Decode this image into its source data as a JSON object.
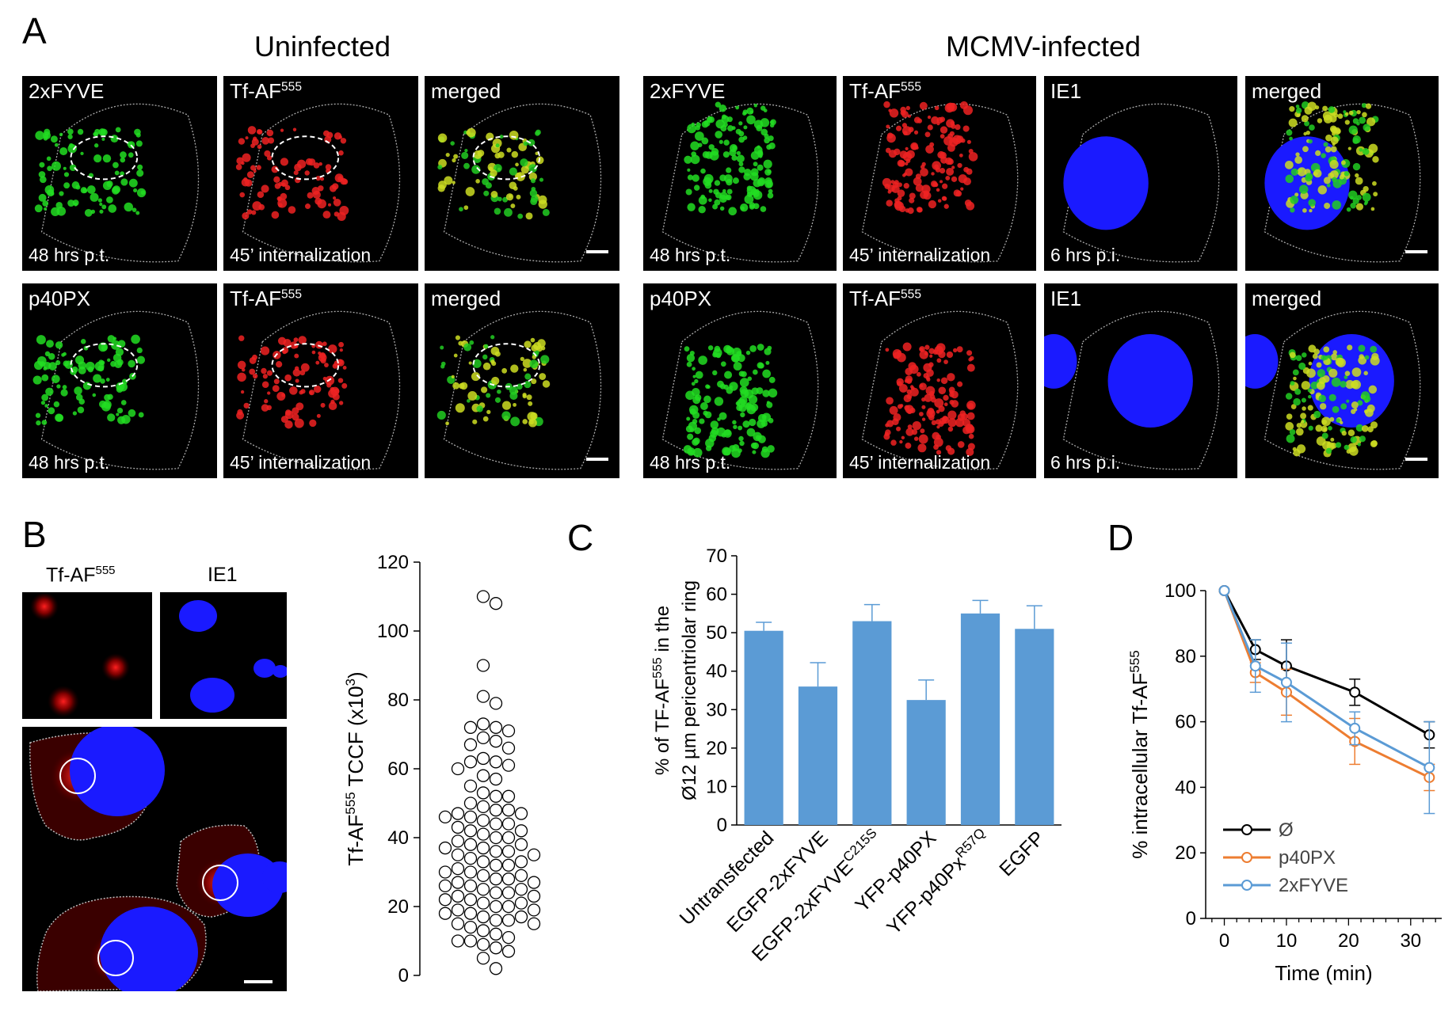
{
  "panel_labels": {
    "a": "A",
    "b": "B",
    "c": "C",
    "d": "D"
  },
  "panel_a": {
    "group_uninfected": "Uninfected",
    "group_infected": "MCMV-infected",
    "tiles": [
      {
        "top": "2xFYVE",
        "bottom": "48 hrs p.t."
      },
      {
        "top": "Tf-AF",
        "sup": "555",
        "bottom": "45’ internalization"
      },
      {
        "top": "merged",
        "bottom": ""
      },
      {
        "top": "2xFYVE",
        "bottom": "48 hrs p.t."
      },
      {
        "top": "Tf-AF",
        "sup": "555",
        "bottom": "45’ internalization"
      },
      {
        "top": "IE1",
        "bottom": "6 hrs p.i."
      },
      {
        "top": "merged",
        "bottom": ""
      },
      {
        "top": "p40PX",
        "bottom": "48 hrs p.t."
      },
      {
        "top": "Tf-AF",
        "sup": "555",
        "bottom": "45’ internalization"
      },
      {
        "top": "merged",
        "bottom": ""
      },
      {
        "top": "p40PX",
        "bottom": "48 hrs p.t."
      },
      {
        "top": "Tf-AF",
        "sup": "555",
        "bottom": "45’ internalization"
      },
      {
        "top": "IE1",
        "bottom": "6 hrs p.i."
      },
      {
        "top": "merged",
        "bottom": ""
      }
    ]
  },
  "panel_b": {
    "label_tf": "Tf-AF",
    "label_tf_sup": "555",
    "label_ie1": "IE1"
  },
  "chart_data": [
    {
      "type": "scatter",
      "panel": "B",
      "ylabel": "Tf-AF",
      "ylabel_sup": "555",
      "ylabel_rest": " TCCF (x10",
      "ylabel_exp": "3",
      "ylabel_end": ")",
      "ylim": [
        0,
        120
      ],
      "yticks": [
        0,
        20,
        40,
        60,
        80,
        100,
        120
      ],
      "values": [
        110,
        108,
        90,
        81,
        79,
        73,
        72,
        72,
        71,
        69,
        68,
        67,
        66,
        63,
        62,
        62,
        61,
        60,
        58,
        57,
        55,
        53,
        52,
        52,
        50,
        49,
        48,
        48,
        47,
        47,
        46,
        46,
        45,
        44,
        44,
        43,
        42,
        42,
        41,
        40,
        40,
        39,
        38,
        38,
        37,
        37,
        36,
        36,
        35,
        35,
        34,
        33,
        33,
        32,
        32,
        31,
        30,
        30,
        29,
        29,
        28,
        28,
        27,
        27,
        26,
        26,
        25,
        25,
        24,
        24,
        23,
        23,
        22,
        22,
        21,
        21,
        20,
        20,
        19,
        19,
        18,
        18,
        17,
        17,
        16,
        16,
        15,
        15,
        14,
        13,
        12,
        11,
        10,
        10,
        9,
        8,
        7,
        5,
        2
      ]
    },
    {
      "type": "bar",
      "panel": "C",
      "ylabel_line1": "% of TF-AF",
      "ylabel_line1_sup": "555",
      "ylabel_line1_end": " in the",
      "ylabel_line2": "Ø12 µm pericentriolar ring",
      "ylim": [
        0,
        70
      ],
      "yticks": [
        0,
        10,
        20,
        30,
        40,
        50,
        60,
        70
      ],
      "bar_color": "#5b9bd5",
      "categories": [
        {
          "text": "Untransfected",
          "sup": ""
        },
        {
          "text": "EGFP-2xFYVE",
          "sup": ""
        },
        {
          "text": "EGFP-2xFYVE",
          "sup": "C215S"
        },
        {
          "text": "YFP-p40PX",
          "sup": ""
        },
        {
          "text": "YFP-p40Px",
          "sup": "R57Q"
        },
        {
          "text": "EGFP",
          "sup": ""
        }
      ],
      "values": [
        50.5,
        36,
        53,
        32.5,
        55,
        51
      ],
      "errors": [
        2.2,
        6.2,
        4.3,
        5.2,
        3.4,
        6
      ]
    },
    {
      "type": "line",
      "panel": "D",
      "xlabel": "Time (min)",
      "ylabel": "% intracellular Tf-AF",
      "ylabel_sup": "555",
      "xlim": [
        -3,
        35
      ],
      "ylim": [
        0,
        100
      ],
      "xticks": [
        0,
        10,
        20,
        30
      ],
      "yticks": [
        0,
        20,
        40,
        60,
        80,
        100
      ],
      "x": [
        0,
        5,
        10,
        21,
        33
      ],
      "legend_position": "bottom-left",
      "series": [
        {
          "name": "Ø",
          "color": "#000000",
          "values": [
            100,
            82,
            77,
            69,
            56
          ],
          "errors": [
            0,
            3,
            8,
            4,
            4
          ]
        },
        {
          "name": "p40PX",
          "color": "#ed7d31",
          "values": [
            100,
            75,
            69,
            54,
            43
          ],
          "errors": [
            0,
            3,
            7,
            7,
            4
          ]
        },
        {
          "name": "2xFYVE",
          "color": "#5b9bd5",
          "values": [
            100,
            77,
            72,
            58,
            46
          ],
          "errors": [
            0,
            8,
            12,
            5,
            14
          ]
        }
      ]
    }
  ]
}
